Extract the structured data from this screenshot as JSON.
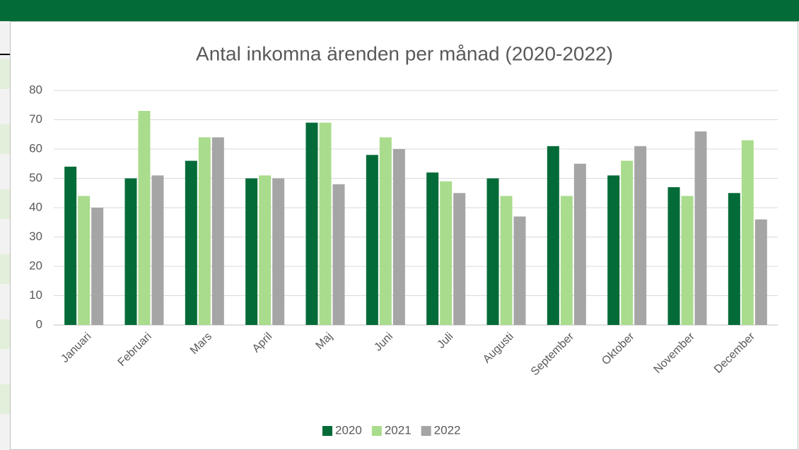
{
  "chart_data": {
    "type": "bar",
    "title": "Antal inkomna ärenden per månad (2020-2022)",
    "categories": [
      "Januari",
      "Februari",
      "Mars",
      "April",
      "Maj",
      "Juni",
      "Juli",
      "Augusti",
      "September",
      "Oktober",
      "November",
      "December"
    ],
    "series": [
      {
        "name": "2020",
        "color": "#036b38",
        "values": [
          54,
          50,
          56,
          50,
          69,
          58,
          52,
          50,
          61,
          51,
          47,
          45
        ]
      },
      {
        "name": "2021",
        "color": "#a9dc8c",
        "values": [
          44,
          73,
          64,
          51,
          69,
          64,
          49,
          44,
          44,
          56,
          44,
          63
        ]
      },
      {
        "name": "2022",
        "color": "#a5a5a5",
        "values": [
          40,
          51,
          64,
          50,
          48,
          60,
          45,
          37,
          55,
          61,
          66,
          36
        ]
      }
    ],
    "ylim": [
      0,
      80
    ],
    "yticks": [
      0,
      10,
      20,
      30,
      40,
      50,
      60,
      70,
      80
    ],
    "grid": true,
    "legend": "bottom"
  }
}
